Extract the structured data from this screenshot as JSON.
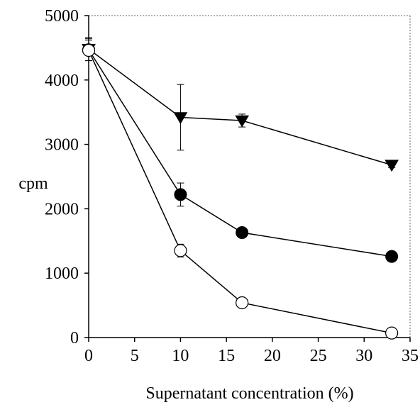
{
  "chart_data": {
    "type": "line",
    "title": "",
    "xlabel": "Supernatant concentration (%)",
    "ylabel": "cpm",
    "xlim": [
      0,
      35
    ],
    "ylim": [
      0,
      5000
    ],
    "x_ticks": [
      0,
      5,
      10,
      15,
      20,
      25,
      30,
      35
    ],
    "y_ticks": [
      0,
      1000,
      2000,
      3000,
      4000,
      5000
    ],
    "grid": false,
    "legend": "none",
    "series": [
      {
        "marker": "triangle-down-filled",
        "color": "#000000",
        "x": [
          0,
          10,
          16.7,
          33
        ],
        "y": [
          4480,
          3420,
          3370,
          2680
        ],
        "error": [
          180,
          510,
          100,
          40
        ]
      },
      {
        "marker": "circle-filled",
        "color": "#000000",
        "x": [
          0,
          10,
          16.7,
          33
        ],
        "y": [
          4470,
          2220,
          1630,
          1260
        ],
        "error": [
          170,
          180,
          40,
          40
        ]
      },
      {
        "marker": "circle-open",
        "color": "#000000",
        "x": [
          0,
          10,
          16.7,
          33
        ],
        "y": [
          4460,
          1350,
          540,
          70
        ],
        "error": [
          160,
          100,
          30,
          30
        ]
      }
    ]
  }
}
